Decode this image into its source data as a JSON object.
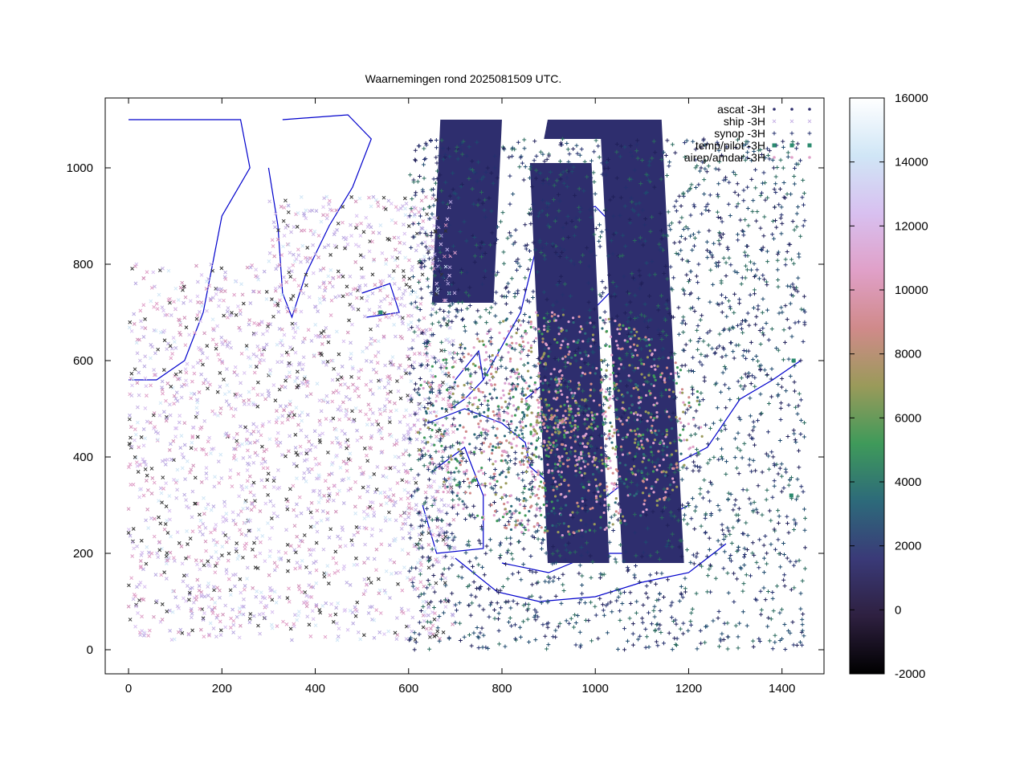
{
  "chart_data": {
    "type": "scatter",
    "title": "Waarnemingen rond 2025081509 UTC.",
    "xlabel": "",
    "ylabel": "",
    "xlim": [
      -50,
      1490
    ],
    "ylim": [
      -50,
      1145
    ],
    "xticks": [
      0,
      200,
      400,
      600,
      800,
      1000,
      1200,
      1400
    ],
    "yticks": [
      0,
      200,
      400,
      600,
      800,
      1000
    ],
    "grid": false,
    "legend_position": "top-right",
    "colorbar": {
      "range": [
        -2000,
        16000
      ],
      "ticks": [
        -2000,
        0,
        2000,
        4000,
        6000,
        8000,
        10000,
        12000,
        14000,
        16000
      ],
      "gradient": [
        "#000000",
        "#2e2040",
        "#3a3a78",
        "#2d6a7a",
        "#3f9a5a",
        "#9a9a5a",
        "#d08a8a",
        "#e0a0c8",
        "#d8c0f0",
        "#d0e6f6",
        "#ffffff"
      ]
    },
    "series": [
      {
        "name": "ascat -3H",
        "marker": "dot",
        "color": "#2e2e6e",
        "regions": [
          [
            650,
            800,
            720,
            1100
          ],
          [
            890,
            1030,
            1060,
            1100
          ],
          [
            860,
            1030,
            1010,
            180
          ],
          [
            1010,
            1190,
            1100,
            180
          ]
        ]
      },
      {
        "name": "ship -3H",
        "marker": "x",
        "color": "#c8b4e6",
        "count": 2400,
        "region": [
          0,
          700,
          20,
          940
        ]
      },
      {
        "name": "synop -3H",
        "marker": "+",
        "color": "#24306e",
        "count": 2600,
        "region": [
          600,
          1450,
          0,
          1060
        ]
      },
      {
        "name": "temp/pilot -3H",
        "marker": "square",
        "color": "#2a8a6e",
        "points": [
          [
            1420,
            320
          ],
          [
            1425,
            600
          ],
          [
            540,
            700
          ]
        ]
      },
      {
        "name": "airep/amdar -3H",
        "marker": "dot",
        "color": "#e0a0c8",
        "hub": [
          920,
          470
        ],
        "count": 1400
      }
    ],
    "coastline_color": "#0000cc"
  }
}
